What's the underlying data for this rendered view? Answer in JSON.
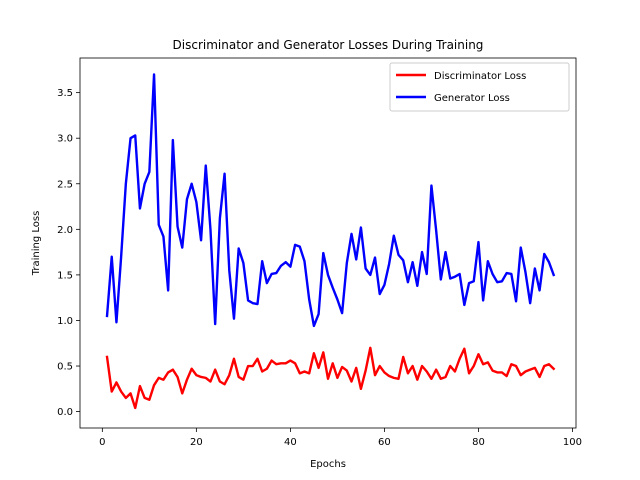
{
  "chart_data": {
    "type": "line",
    "title": "Discriminator and Generator Losses During Training",
    "xlabel": "Epochs",
    "ylabel": "Training Loss",
    "xlim": [
      -4.75,
      100.75
    ],
    "ylim": [
      -0.18,
      3.88
    ],
    "xticks": [
      0,
      20,
      40,
      60,
      80,
      100
    ],
    "yticks": [
      0.0,
      0.5,
      1.0,
      1.5,
      2.0,
      2.5,
      3.0,
      3.5
    ],
    "ytick_labels": [
      "0.0",
      "0.5",
      "1.0",
      "1.5",
      "2.0",
      "2.5",
      "3.0",
      "3.5"
    ],
    "grid": false,
    "legend": "upper right",
    "x": [
      1,
      2,
      3,
      4,
      5,
      6,
      7,
      8,
      9,
      10,
      11,
      12,
      13,
      14,
      15,
      16,
      17,
      18,
      19,
      20,
      21,
      22,
      23,
      24,
      25,
      26,
      27,
      28,
      29,
      30,
      31,
      32,
      33,
      34,
      35,
      36,
      37,
      38,
      39,
      40,
      41,
      42,
      43,
      44,
      45,
      46,
      47,
      48,
      49,
      50,
      51,
      52,
      53,
      54,
      55,
      56,
      57,
      58,
      59,
      60,
      61,
      62,
      63,
      64,
      65,
      66,
      67,
      68,
      69,
      70,
      71,
      72,
      73,
      74,
      75,
      76,
      77,
      78,
      79,
      80,
      81,
      82,
      83,
      84,
      85,
      86,
      87,
      88,
      89,
      90,
      91,
      92,
      93,
      94,
      95,
      96
    ],
    "series": [
      {
        "name": "Discriminator Loss",
        "color": "#ff0000",
        "values": [
          0.6,
          0.22,
          0.32,
          0.22,
          0.15,
          0.2,
          0.04,
          0.28,
          0.15,
          0.13,
          0.29,
          0.37,
          0.35,
          0.43,
          0.46,
          0.38,
          0.2,
          0.35,
          0.47,
          0.4,
          0.38,
          0.37,
          0.33,
          0.46,
          0.33,
          0.3,
          0.4,
          0.58,
          0.38,
          0.35,
          0.5,
          0.5,
          0.58,
          0.44,
          0.47,
          0.56,
          0.52,
          0.53,
          0.53,
          0.56,
          0.53,
          0.42,
          0.44,
          0.42,
          0.64,
          0.48,
          0.65,
          0.36,
          0.53,
          0.37,
          0.49,
          0.45,
          0.33,
          0.48,
          0.25,
          0.45,
          0.7,
          0.4,
          0.5,
          0.43,
          0.39,
          0.37,
          0.36,
          0.6,
          0.42,
          0.5,
          0.35,
          0.5,
          0.44,
          0.36,
          0.46,
          0.36,
          0.38,
          0.5,
          0.44,
          0.58,
          0.69,
          0.42,
          0.5,
          0.63,
          0.52,
          0.54,
          0.45,
          0.43,
          0.43,
          0.39,
          0.52,
          0.5,
          0.4,
          0.44,
          0.46,
          0.48,
          0.38,
          0.5,
          0.52,
          0.47
        ]
      },
      {
        "name": "Generator Loss",
        "color": "#0000ff",
        "values": [
          1.05,
          1.7,
          0.98,
          1.7,
          2.5,
          3.0,
          3.03,
          2.23,
          2.5,
          2.63,
          3.7,
          2.05,
          1.92,
          1.33,
          2.98,
          2.03,
          1.8,
          2.33,
          2.5,
          2.3,
          1.88,
          2.7,
          2.0,
          0.96,
          2.12,
          2.61,
          1.55,
          1.02,
          1.79,
          1.63,
          1.22,
          1.19,
          1.18,
          1.65,
          1.41,
          1.51,
          1.52,
          1.6,
          1.64,
          1.59,
          1.83,
          1.81,
          1.65,
          1.23,
          0.94,
          1.07,
          1.74,
          1.5,
          1.36,
          1.23,
          1.08,
          1.63,
          1.95,
          1.67,
          2.02,
          1.57,
          1.5,
          1.69,
          1.29,
          1.39,
          1.62,
          1.93,
          1.72,
          1.66,
          1.42,
          1.64,
          1.38,
          1.75,
          1.51,
          2.48,
          1.99,
          1.45,
          1.75,
          1.46,
          1.48,
          1.51,
          1.17,
          1.41,
          1.43,
          1.86,
          1.22,
          1.65,
          1.51,
          1.42,
          1.43,
          1.52,
          1.51,
          1.21,
          1.8,
          1.53,
          1.19,
          1.57,
          1.33,
          1.73,
          1.64,
          1.5
        ]
      }
    ]
  }
}
